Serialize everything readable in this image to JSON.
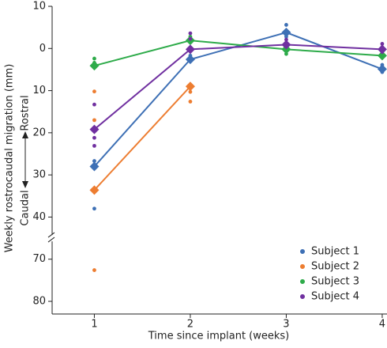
{
  "chart_data": {
    "type": "line",
    "xlabel": "Time since implant (weeks)",
    "ylabel": "Weekly rostrocaudal migration (mm)",
    "annotations": [
      "Rostral",
      "Caudal"
    ],
    "x": [
      1,
      2,
      3,
      4
    ],
    "xlim": [
      0.56,
      4.05
    ],
    "xticks": [
      1,
      2,
      3,
      4
    ],
    "ylim": [
      -10,
      83
    ],
    "y_inverted": true,
    "ybreak": [
      45,
      65
    ],
    "yticks": [
      {
        "value": -10,
        "label": "10"
      },
      0,
      10,
      20,
      30,
      40,
      70,
      80
    ],
    "legend": "lower right",
    "series": [
      {
        "name": "Subject 1",
        "color": "#3e70b5",
        "values": [
          28,
          2.6,
          -3.8,
          4.9
        ],
        "points": {
          "x": [
            1,
            1,
            2,
            3,
            3,
            4,
            4
          ],
          "y": [
            26.7,
            38,
            1.7,
            -5.6,
            -2.8,
            3.9,
            5.6
          ]
        }
      },
      {
        "name": "Subject 2",
        "color": "#ed7d31",
        "values": [
          33.6,
          9,
          null,
          null
        ],
        "points": {
          "x": [
            1,
            1,
            1,
            2,
            2
          ],
          "y": [
            10.2,
            17,
            72.6,
            10.3,
            12.6
          ]
        }
      },
      {
        "name": "Subject 3",
        "color": "#2eab4a",
        "values": [
          4.1,
          -1.9,
          0.2,
          1.7
        ],
        "points": {
          "x": [
            1,
            1,
            2,
            3,
            3,
            4
          ],
          "y": [
            2.4,
            3.4,
            -2.8,
            1.3,
            -0.8,
            0.8
          ]
        }
      },
      {
        "name": "Subject 4",
        "color": "#7030a0",
        "values": [
          19.2,
          0.2,
          -0.9,
          0.2
        ],
        "points": {
          "x": [
            1,
            1,
            1,
            2,
            2,
            3,
            4,
            4
          ],
          "y": [
            13.3,
            21.2,
            23.1,
            -3.6,
            -2.3,
            -2.1,
            -1.1,
            0.8
          ]
        }
      }
    ]
  }
}
